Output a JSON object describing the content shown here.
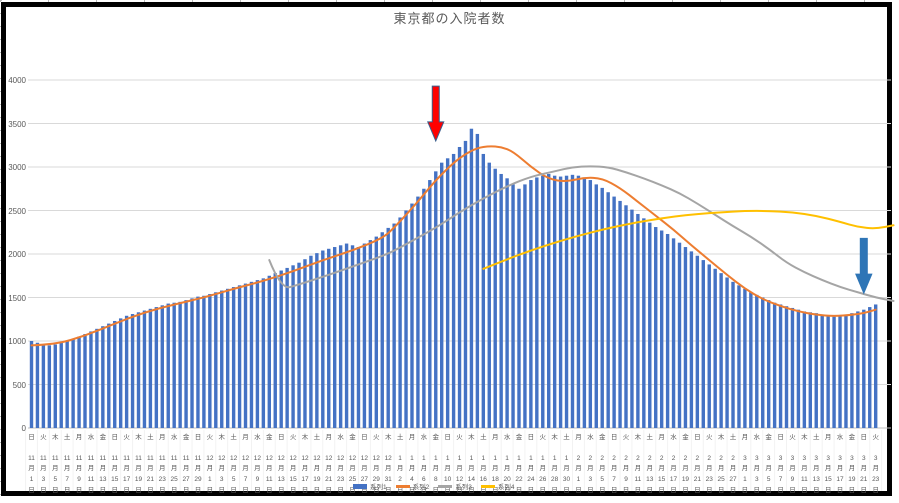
{
  "window": {
    "frame_color": "#000000",
    "background": "#ffffff"
  },
  "chart_data": {
    "type": "combo",
    "title": "東京都の入院者数",
    "xlabel": "",
    "ylabel": "",
    "ylim": [
      0,
      4000
    ],
    "ytick_step": 500,
    "yticks": [
      0,
      500,
      1000,
      1500,
      2000,
      2500,
      3000,
      3500,
      4000
    ],
    "grid": "horizontal",
    "legend_position": "bottom",
    "x_start_date": "11月1日(日)",
    "x_end_date": "3月23日(火)",
    "x_label_interval_days": 2,
    "x_labels": [
      [
        "日",
        11,
        1
      ],
      [
        "火",
        11,
        3
      ],
      [
        "木",
        11,
        5
      ],
      [
        "土",
        11,
        7
      ],
      [
        "月",
        11,
        9
      ],
      [
        "水",
        11,
        11
      ],
      [
        "金",
        11,
        13
      ],
      [
        "日",
        11,
        15
      ],
      [
        "火",
        11,
        17
      ],
      [
        "木",
        11,
        19
      ],
      [
        "土",
        11,
        21
      ],
      [
        "月",
        11,
        23
      ],
      [
        "水",
        11,
        25
      ],
      [
        "金",
        11,
        27
      ],
      [
        "日",
        11,
        29
      ],
      [
        "火",
        12,
        1
      ],
      [
        "木",
        12,
        3
      ],
      [
        "土",
        12,
        5
      ],
      [
        "月",
        12,
        7
      ],
      [
        "水",
        12,
        9
      ],
      [
        "金",
        12,
        11
      ],
      [
        "日",
        12,
        13
      ],
      [
        "火",
        12,
        15
      ],
      [
        "木",
        12,
        17
      ],
      [
        "土",
        12,
        19
      ],
      [
        "月",
        12,
        21
      ],
      [
        "水",
        12,
        23
      ],
      [
        "金",
        12,
        25
      ],
      [
        "日",
        12,
        27
      ],
      [
        "火",
        12,
        29
      ],
      [
        "木",
        12,
        31
      ],
      [
        "土",
        1,
        2
      ],
      [
        "月",
        1,
        4
      ],
      [
        "水",
        1,
        6
      ],
      [
        "金",
        1,
        8
      ],
      [
        "日",
        1,
        10
      ],
      [
        "火",
        1,
        12
      ],
      [
        "木",
        1,
        14
      ],
      [
        "土",
        1,
        16
      ],
      [
        "月",
        1,
        18
      ],
      [
        "水",
        1,
        20
      ],
      [
        "金",
        1,
        22
      ],
      [
        "日",
        1,
        24
      ],
      [
        "火",
        1,
        26
      ],
      [
        "木",
        1,
        28
      ],
      [
        "土",
        1,
        30
      ],
      [
        "月",
        2,
        1
      ],
      [
        "水",
        2,
        3
      ],
      [
        "金",
        2,
        5
      ],
      [
        "日",
        2,
        7
      ],
      [
        "火",
        2,
        9
      ],
      [
        "木",
        2,
        11
      ],
      [
        "土",
        2,
        13
      ],
      [
        "月",
        2,
        15
      ],
      [
        "水",
        2,
        17
      ],
      [
        "金",
        2,
        19
      ],
      [
        "日",
        2,
        21
      ],
      [
        "火",
        2,
        23
      ],
      [
        "木",
        2,
        25
      ],
      [
        "土",
        2,
        27
      ],
      [
        "月",
        3,
        1
      ],
      [
        "水",
        3,
        3
      ],
      [
        "金",
        3,
        5
      ],
      [
        "日",
        3,
        7
      ],
      [
        "火",
        3,
        9
      ],
      [
        "木",
        3,
        11
      ],
      [
        "土",
        3,
        13
      ],
      [
        "月",
        3,
        15
      ],
      [
        "水",
        3,
        17
      ],
      [
        "金",
        3,
        19
      ],
      [
        "日",
        3,
        21
      ],
      [
        "火",
        3,
        23
      ]
    ],
    "series": [
      {
        "name": "系列1",
        "type": "bar",
        "color": "#4472C4",
        "start_date": "11/1",
        "daily_values": [
          1000,
          980,
          960,
          950,
          960,
          980,
          1000,
          1020,
          1050,
          1080,
          1110,
          1140,
          1170,
          1200,
          1230,
          1260,
          1290,
          1310,
          1330,
          1350,
          1370,
          1390,
          1410,
          1430,
          1440,
          1450,
          1470,
          1490,
          1510,
          1520,
          1540,
          1560,
          1580,
          1600,
          1620,
          1640,
          1660,
          1680,
          1700,
          1720,
          1750,
          1780,
          1810,
          1840,
          1870,
          1900,
          1940,
          1980,
          2010,
          2040,
          2060,
          2080,
          2100,
          2120,
          2100,
          2080,
          2120,
          2160,
          2200,
          2250,
          2300,
          2350,
          2420,
          2500,
          2580,
          2660,
          2750,
          2850,
          2950,
          3050,
          3100,
          3150,
          3230,
          3300,
          3440,
          3380,
          3150,
          3050,
          2980,
          2920,
          2870,
          2800,
          2750,
          2800,
          2850,
          2880,
          2900,
          2920,
          2900,
          2890,
          2900,
          2910,
          2900,
          2880,
          2850,
          2800,
          2760,
          2710,
          2660,
          2610,
          2560,
          2510,
          2460,
          2410,
          2360,
          2310,
          2270,
          2230,
          2180,
          2130,
          2080,
          2030,
          1980,
          1930,
          1880,
          1830,
          1780,
          1730,
          1680,
          1640,
          1600,
          1560,
          1530,
          1500,
          1470,
          1440,
          1420,
          1400,
          1380,
          1360,
          1340,
          1330,
          1320,
          1300,
          1290,
          1280,
          1290,
          1300,
          1320,
          1340,
          1360,
          1390,
          1420
        ]
      },
      {
        "name": "系列2",
        "type": "line",
        "color": "#ED7D31",
        "points": [
          [
            0,
            950
          ],
          [
            4,
            960
          ],
          [
            9,
            1060
          ],
          [
            14,
            1200
          ],
          [
            19,
            1330
          ],
          [
            24,
            1420
          ],
          [
            29,
            1500
          ],
          [
            34,
            1600
          ],
          [
            39,
            1690
          ],
          [
            44,
            1800
          ],
          [
            49,
            1930
          ],
          [
            54,
            2040
          ],
          [
            59,
            2180
          ],
          [
            61,
            2300
          ],
          [
            65,
            2600
          ],
          [
            68,
            2850
          ],
          [
            71,
            3050
          ],
          [
            73,
            3150
          ],
          [
            75,
            3220
          ],
          [
            77,
            3240
          ],
          [
            79,
            3230
          ],
          [
            81,
            3180
          ],
          [
            84,
            3000
          ],
          [
            87,
            2860
          ],
          [
            90,
            2830
          ],
          [
            93,
            2880
          ],
          [
            96,
            2870
          ],
          [
            99,
            2760
          ],
          [
            102,
            2600
          ],
          [
            105,
            2440
          ],
          [
            108,
            2280
          ],
          [
            111,
            2100
          ],
          [
            114,
            1930
          ],
          [
            117,
            1760
          ],
          [
            120,
            1600
          ],
          [
            123,
            1480
          ],
          [
            126,
            1400
          ],
          [
            129,
            1340
          ],
          [
            132,
            1300
          ],
          [
            135,
            1285
          ],
          [
            138,
            1300
          ],
          [
            140,
            1320
          ],
          [
            142,
            1360
          ]
        ]
      },
      {
        "name": "系列3",
        "type": "line",
        "color": "#A5A5A5",
        "points": [
          [
            40,
            1930
          ],
          [
            42,
            1590
          ],
          [
            45,
            1650
          ],
          [
            50,
            1760
          ],
          [
            55,
            1880
          ],
          [
            60,
            2000
          ],
          [
            64,
            2150
          ],
          [
            68,
            2300
          ],
          [
            72,
            2480
          ],
          [
            76,
            2640
          ],
          [
            80,
            2780
          ],
          [
            84,
            2890
          ],
          [
            88,
            2950
          ],
          [
            91,
            3000
          ],
          [
            94,
            3010
          ],
          [
            97,
            3000
          ],
          [
            100,
            2940
          ],
          [
            103,
            2870
          ],
          [
            106,
            2790
          ],
          [
            109,
            2700
          ],
          [
            112,
            2580
          ],
          [
            115,
            2450
          ],
          [
            118,
            2320
          ],
          [
            121,
            2200
          ],
          [
            124,
            2060
          ],
          [
            127,
            1900
          ],
          [
            130,
            1790
          ],
          [
            133,
            1700
          ],
          [
            136,
            1620
          ],
          [
            139,
            1560
          ],
          [
            142,
            1500
          ],
          [
            145,
            1460
          ]
        ]
      },
      {
        "name": "系列4",
        "type": "line",
        "color": "#FFC000",
        "points": [
          [
            76,
            1830
          ],
          [
            80,
            1940
          ],
          [
            84,
            2040
          ],
          [
            88,
            2130
          ],
          [
            92,
            2210
          ],
          [
            96,
            2280
          ],
          [
            100,
            2340
          ],
          [
            104,
            2390
          ],
          [
            108,
            2430
          ],
          [
            112,
            2460
          ],
          [
            116,
            2480
          ],
          [
            120,
            2495
          ],
          [
            124,
            2495
          ],
          [
            128,
            2480
          ],
          [
            132,
            2440
          ],
          [
            136,
            2370
          ],
          [
            139,
            2310
          ],
          [
            142,
            2290
          ],
          [
            145,
            2330
          ]
        ]
      }
    ],
    "annotations": [
      {
        "shape": "down-arrow",
        "name": "red-arrow",
        "color": "#FF0000",
        "outline": "#3A5E8C",
        "day_index": 68,
        "from_value": 3930,
        "to_value": 3300
      },
      {
        "shape": "down-arrow",
        "name": "blue-arrow",
        "color": "#2E75B6",
        "outline": "#2E75B6",
        "day_index": 140,
        "from_value": 2180,
        "to_value": 1550
      }
    ]
  }
}
